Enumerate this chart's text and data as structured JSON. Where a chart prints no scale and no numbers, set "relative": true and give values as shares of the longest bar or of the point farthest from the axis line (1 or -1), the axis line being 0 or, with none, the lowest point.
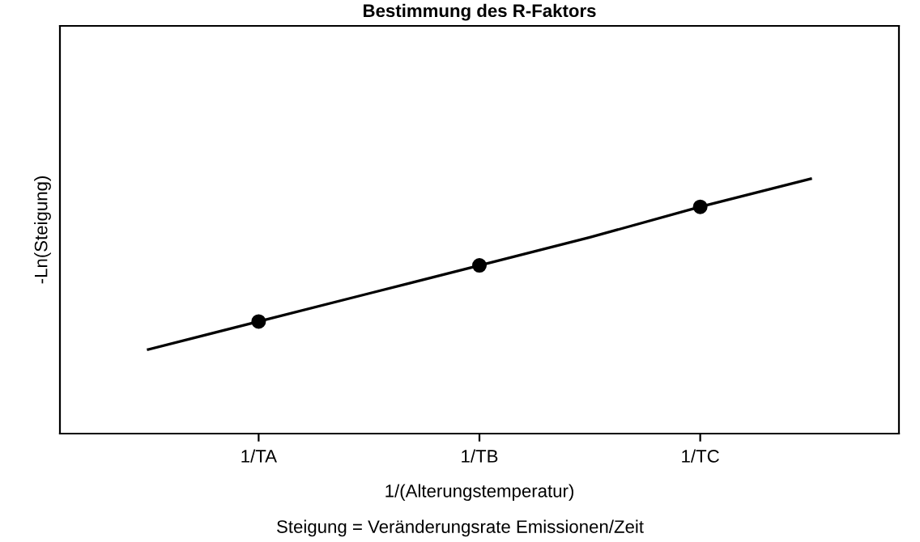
{
  "chart_data": {
    "type": "line",
    "title": "Bestimmung des R-Faktors",
    "xlabel": "1/(Alterungstemperatur)",
    "ylabel": "-Ln(Steigung)",
    "annotations": [
      "Steigung = Veränderungsrate Emissionen/Zeit"
    ],
    "relative": true,
    "tick_labels": "x",
    "grid": false,
    "legend": false,
    "categories": [
      null,
      "1/TA",
      null,
      "1/TB",
      null,
      "1/TC",
      null
    ],
    "series": [
      {
        "color": "#000000",
        "marker": "none",
        "values": [
          0.33,
          0.44,
          0.55,
          0.66,
          0.77,
          0.89,
          1.0
        ]
      },
      {
        "type": "scatter",
        "color": "#000000",
        "marker": "circle",
        "values": [
          null,
          0.44,
          null,
          0.66,
          null,
          0.89,
          null
        ]
      }
    ]
  }
}
